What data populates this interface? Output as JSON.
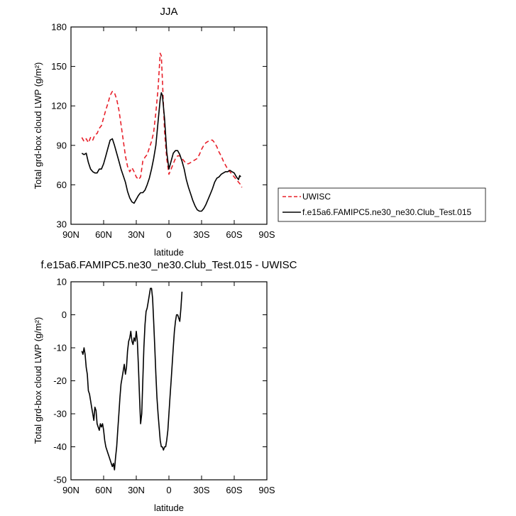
{
  "chart_data": [
    {
      "type": "line",
      "title": "JJA",
      "xlabel": "latitude",
      "ylabel": "Total grd-box cloud LWP (g/m²)",
      "xlim": [
        -90,
        90
      ],
      "ylim": [
        30,
        180
      ],
      "xticks": [
        -90,
        -60,
        -30,
        0,
        30,
        60,
        90
      ],
      "xtick_labels": [
        "90N",
        "60N",
        "30N",
        "0",
        "30S",
        "60S",
        "90S"
      ],
      "yticks": [
        30,
        60,
        90,
        120,
        150,
        180
      ],
      "ytick_labels": [
        "30",
        "60",
        "90",
        "120",
        "150",
        "180"
      ],
      "legend_position": "right",
      "series": [
        {
          "name": "UWISC",
          "color": "#e8202a",
          "dash": "dashed",
          "points": [
            [
              -80,
              96
            ],
            [
              -78,
              93
            ],
            [
              -76,
              95
            ],
            [
              -74,
              92
            ],
            [
              -72,
              96
            ],
            [
              -70,
              94
            ],
            [
              -68,
              98
            ],
            [
              -66,
              99
            ],
            [
              -64,
              103
            ],
            [
              -62,
              105
            ],
            [
              -60,
              111
            ],
            [
              -58,
              117
            ],
            [
              -56,
              122
            ],
            [
              -54,
              128
            ],
            [
              -52,
              131
            ],
            [
              -50,
              130
            ],
            [
              -48,
              125
            ],
            [
              -46,
              117
            ],
            [
              -44,
              106
            ],
            [
              -42,
              94
            ],
            [
              -40,
              82
            ],
            [
              -38,
              74
            ],
            [
              -36,
              70
            ],
            [
              -34,
              73
            ],
            [
              -32,
              70
            ],
            [
              -30,
              66
            ],
            [
              -28,
              64
            ],
            [
              -26,
              66
            ],
            [
              -24,
              78
            ],
            [
              -22,
              81
            ],
            [
              -20,
              83
            ],
            [
              -18,
              88
            ],
            [
              -16,
              93
            ],
            [
              -14,
              100
            ],
            [
              -12,
              115
            ],
            [
              -10,
              133
            ],
            [
              -8,
              160
            ],
            [
              -7,
              158
            ],
            [
              -6,
              140
            ],
            [
              -4,
              100
            ],
            [
              -2,
              80
            ],
            [
              0,
              68
            ],
            [
              2,
              72
            ],
            [
              4,
              76
            ],
            [
              6,
              80
            ],
            [
              8,
              82
            ],
            [
              10,
              82
            ],
            [
              12,
              80
            ],
            [
              14,
              78
            ],
            [
              16,
              76
            ],
            [
              18,
              76
            ],
            [
              20,
              77
            ],
            [
              22,
              78
            ],
            [
              24,
              79
            ],
            [
              26,
              80
            ],
            [
              28,
              83
            ],
            [
              30,
              87
            ],
            [
              32,
              90
            ],
            [
              34,
              92
            ],
            [
              36,
              93
            ],
            [
              38,
              94
            ],
            [
              40,
              94
            ],
            [
              42,
              92
            ],
            [
              44,
              89
            ],
            [
              46,
              85
            ],
            [
              48,
              82
            ],
            [
              50,
              78
            ],
            [
              52,
              75
            ],
            [
              54,
              72
            ],
            [
              56,
              70
            ],
            [
              58,
              68
            ],
            [
              60,
              66
            ],
            [
              62,
              64
            ],
            [
              64,
              62
            ],
            [
              66,
              60
            ],
            [
              67,
              58
            ]
          ]
        },
        {
          "name": "f.e15a6.FAMIPC5.ne30_ne30.Club_Test.015",
          "color": "#000000",
          "dash": "solid",
          "points": [
            [
              -80,
              84
            ],
            [
              -78,
              83
            ],
            [
              -76,
              84
            ],
            [
              -74,
              77
            ],
            [
              -72,
              72
            ],
            [
              -70,
              70
            ],
            [
              -68,
              69
            ],
            [
              -66,
              69
            ],
            [
              -64,
              72
            ],
            [
              -62,
              72
            ],
            [
              -60,
              76
            ],
            [
              -58,
              82
            ],
            [
              -56,
              88
            ],
            [
              -54,
              94
            ],
            [
              -52,
              95
            ],
            [
              -50,
              90
            ],
            [
              -48,
              84
            ],
            [
              -46,
              78
            ],
            [
              -44,
              72
            ],
            [
              -42,
              67
            ],
            [
              -40,
              62
            ],
            [
              -38,
              55
            ],
            [
              -36,
              50
            ],
            [
              -34,
              47
            ],
            [
              -32,
              46
            ],
            [
              -30,
              49
            ],
            [
              -28,
              52
            ],
            [
              -26,
              54
            ],
            [
              -24,
              54
            ],
            [
              -22,
              56
            ],
            [
              -20,
              60
            ],
            [
              -18,
              65
            ],
            [
              -16,
              72
            ],
            [
              -14,
              80
            ],
            [
              -12,
              90
            ],
            [
              -10,
              108
            ],
            [
              -8,
              125
            ],
            [
              -7,
              130
            ],
            [
              -6,
              128
            ],
            [
              -4,
              110
            ],
            [
              -2,
              85
            ],
            [
              0,
              72
            ],
            [
              2,
              78
            ],
            [
              4,
              84
            ],
            [
              6,
              86
            ],
            [
              8,
              86
            ],
            [
              10,
              83
            ],
            [
              12,
              78
            ],
            [
              14,
              72
            ],
            [
              16,
              64
            ],
            [
              18,
              58
            ],
            [
              20,
              53
            ],
            [
              22,
              48
            ],
            [
              24,
              44
            ],
            [
              26,
              41
            ],
            [
              28,
              40
            ],
            [
              30,
              40
            ],
            [
              32,
              42
            ],
            [
              34,
              45
            ],
            [
              36,
              49
            ],
            [
              38,
              53
            ],
            [
              40,
              57
            ],
            [
              42,
              62
            ],
            [
              44,
              65
            ],
            [
              46,
              66
            ],
            [
              48,
              68
            ],
            [
              50,
              69
            ],
            [
              52,
              70
            ],
            [
              54,
              70
            ],
            [
              56,
              71
            ],
            [
              58,
              70
            ],
            [
              60,
              69
            ],
            [
              62,
              66
            ],
            [
              64,
              64
            ],
            [
              65,
              67
            ],
            [
              66,
              66
            ]
          ]
        }
      ]
    },
    {
      "type": "line",
      "title": "f.e15a6.FAMIPC5.ne30_ne30.Club_Test.015 - UWISC",
      "xlabel": "latitude",
      "ylabel": "Total grd-box cloud LWP (g/m²)",
      "xlim": [
        -90,
        90
      ],
      "ylim": [
        -50,
        10
      ],
      "xticks": [
        -90,
        -60,
        -30,
        0,
        30,
        60,
        90
      ],
      "xtick_labels": [
        "90N",
        "60N",
        "30N",
        "0",
        "30S",
        "60S",
        "90S"
      ],
      "yticks": [
        -50,
        -40,
        -30,
        -20,
        -10,
        0,
        10
      ],
      "ytick_labels": [
        "-50",
        "-40",
        "-30",
        "-20",
        "-10",
        "0",
        "10"
      ],
      "series": [
        {
          "name": "",
          "color": "#000000",
          "dash": "solid",
          "points": [
            [
              -80,
              -11
            ],
            [
              -79,
              -12
            ],
            [
              -78,
              -10
            ],
            [
              -77,
              -12
            ],
            [
              -76,
              -16
            ],
            [
              -75,
              -18
            ],
            [
              -74,
              -23
            ],
            [
              -73,
              -24
            ],
            [
              -72,
              -26
            ],
            [
              -71,
              -28
            ],
            [
              -70,
              -30
            ],
            [
              -69,
              -32
            ],
            [
              -68,
              -28
            ],
            [
              -67,
              -29
            ],
            [
              -66,
              -33
            ],
            [
              -65,
              -34
            ],
            [
              -64,
              -35
            ],
            [
              -63,
              -33
            ],
            [
              -62,
              -34
            ],
            [
              -61,
              -33
            ],
            [
              -60,
              -35
            ],
            [
              -59,
              -38
            ],
            [
              -58,
              -40
            ],
            [
              -57,
              -41
            ],
            [
              -56,
              -42
            ],
            [
              -55,
              -43
            ],
            [
              -54,
              -44
            ],
            [
              -53,
              -45
            ],
            [
              -52,
              -46
            ],
            [
              -51,
              -45
            ],
            [
              -50,
              -47
            ],
            [
              -49,
              -43
            ],
            [
              -48,
              -40
            ],
            [
              -47,
              -35
            ],
            [
              -46,
              -30
            ],
            [
              -45,
              -25
            ],
            [
              -44,
              -21
            ],
            [
              -43,
              -19
            ],
            [
              -42,
              -17
            ],
            [
              -41,
              -15
            ],
            [
              -40,
              -18
            ],
            [
              -39,
              -16
            ],
            [
              -38,
              -11
            ],
            [
              -37,
              -8
            ],
            [
              -36,
              -7
            ],
            [
              -35,
              -5
            ],
            [
              -34,
              -8
            ],
            [
              -33,
              -9
            ],
            [
              -32,
              -7
            ],
            [
              -31,
              -8
            ],
            [
              -30,
              -5
            ],
            [
              -29,
              -8
            ],
            [
              -28,
              -16
            ],
            [
              -27,
              -25
            ],
            [
              -26,
              -33
            ],
            [
              -25,
              -30
            ],
            [
              -24,
              -20
            ],
            [
              -23,
              -10
            ],
            [
              -22,
              -3
            ],
            [
              -21,
              1
            ],
            [
              -20,
              2
            ],
            [
              -19,
              4
            ],
            [
              -18,
              6
            ],
            [
              -17,
              8
            ],
            [
              -16,
              8
            ],
            [
              -15,
              5
            ],
            [
              -14,
              -2
            ],
            [
              -13,
              -10
            ],
            [
              -12,
              -18
            ],
            [
              -11,
              -25
            ],
            [
              -10,
              -30
            ],
            [
              -9,
              -34
            ],
            [
              -8,
              -38
            ],
            [
              -7,
              -40
            ],
            [
              -6,
              -40
            ],
            [
              -5,
              -41
            ],
            [
              -4,
              -40
            ],
            [
              -3,
              -40
            ],
            [
              -2,
              -38
            ],
            [
              -1,
              -35
            ],
            [
              0,
              -30
            ],
            [
              1,
              -25
            ],
            [
              2,
              -20
            ],
            [
              3,
              -15
            ],
            [
              4,
              -10
            ],
            [
              5,
              -5
            ],
            [
              6,
              -2
            ],
            [
              7,
              0
            ],
            [
              8,
              0
            ],
            [
              9,
              -1
            ],
            [
              10,
              -2
            ],
            [
              11,
              2
            ],
            [
              12,
              7
            ]
          ]
        }
      ]
    }
  ]
}
